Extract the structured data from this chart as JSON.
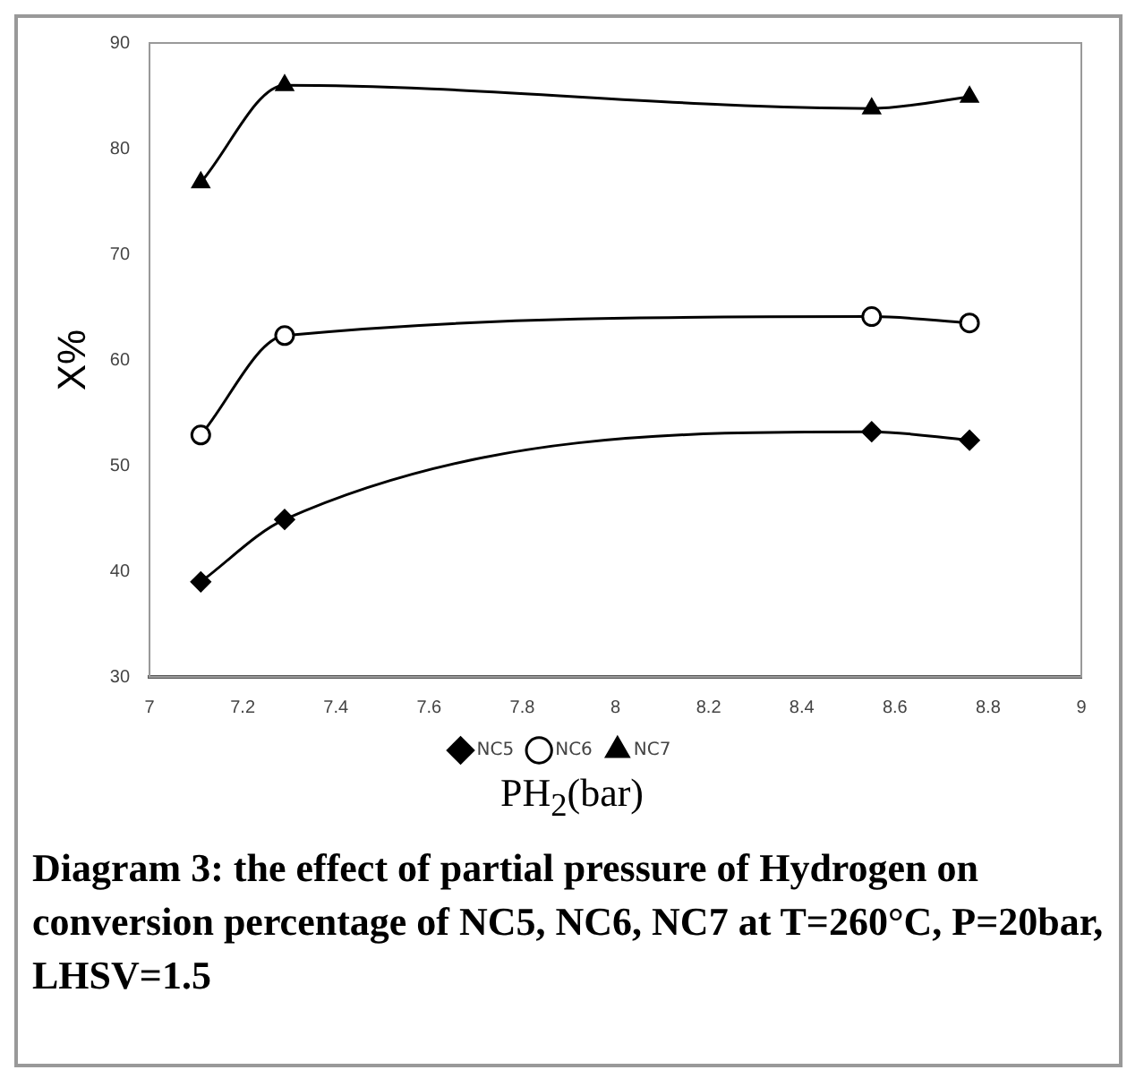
{
  "chart_data": {
    "type": "line",
    "ylabel": "X%",
    "xlabel": "PH$_{2}$(bar)",
    "xlim": [
      7,
      9
    ],
    "xticks": [
      7,
      7.2,
      7.4,
      7.6,
      7.8,
      8,
      8.2,
      8.4,
      8.6,
      8.8,
      9
    ],
    "ylim": [
      30,
      90
    ],
    "yticks": [
      30,
      40,
      50,
      60,
      70,
      80,
      90
    ],
    "grid": false,
    "legend": "bottom",
    "line_style": "solid",
    "series": [
      {
        "name": "NC5",
        "color": "#000000",
        "marker": "diamond",
        "x": [
          7.11,
          7.29,
          8.55,
          8.76
        ],
        "values": [
          39.0,
          44.9,
          53.2,
          52.4
        ]
      },
      {
        "name": "NC6",
        "color": "#000000",
        "marker": "circle",
        "x": [
          7.11,
          7.29,
          8.55,
          8.76
        ],
        "values": [
          52.9,
          62.3,
          64.1,
          63.5
        ]
      },
      {
        "name": "NC7",
        "color": "#000000",
        "marker": "triangle",
        "x": [
          7.11,
          7.29,
          8.55,
          8.76
        ],
        "values": [
          76.8,
          86.0,
          83.8,
          84.9
        ]
      }
    ],
    "annotations": [
      "Diagram 3: the effect of partial pressure of Hydrogen on conversion percentage of NC5, NC6, NC7 at T=260°C, P=20bar, LHSV=1.5"
    ]
  }
}
